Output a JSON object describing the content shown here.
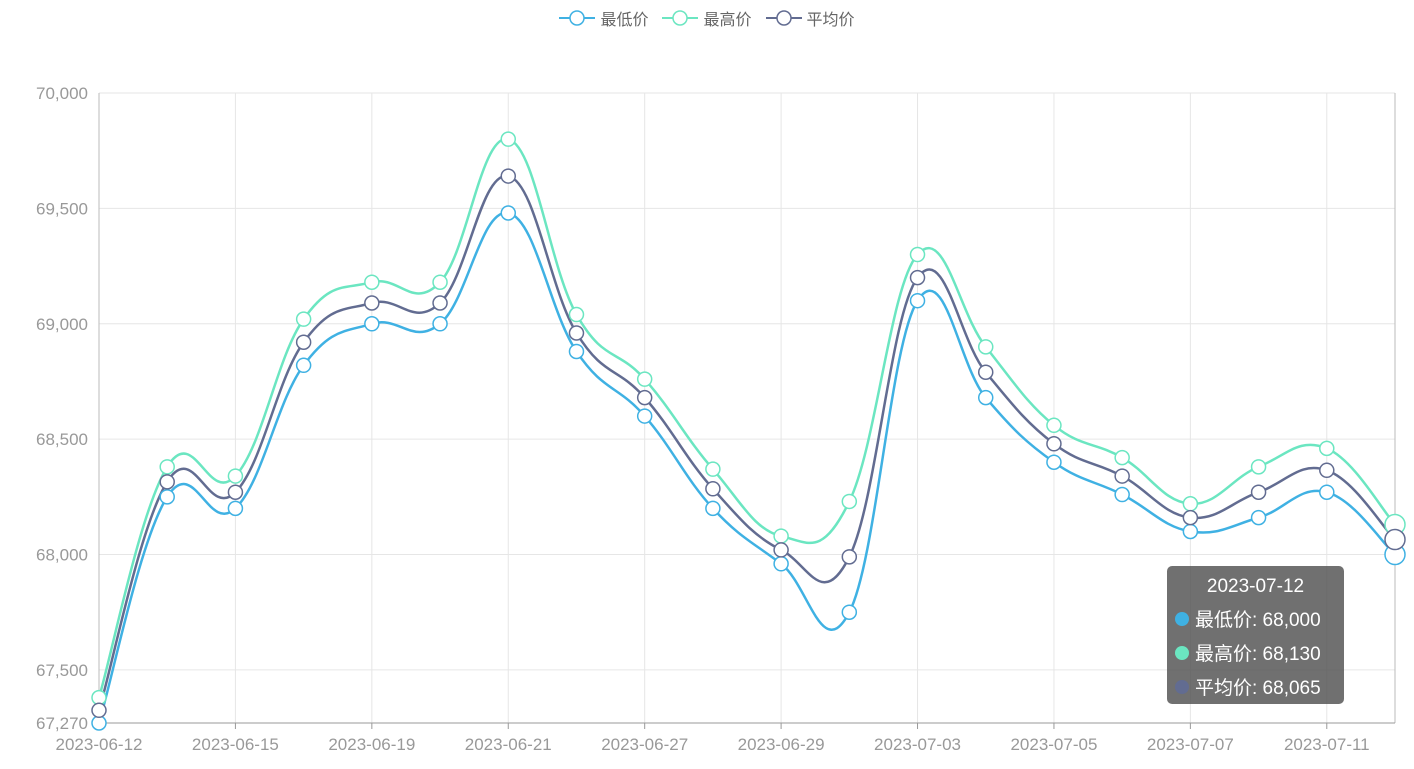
{
  "chart_data": {
    "type": "line",
    "x": [
      "2023-06-12",
      "2023-06-13",
      "2023-06-15",
      "2023-06-16",
      "2023-06-19",
      "2023-06-20",
      "2023-06-21",
      "2023-06-26",
      "2023-06-27",
      "2023-06-28",
      "2023-06-29",
      "2023-06-30",
      "2023-07-03",
      "2023-07-04",
      "2023-07-05",
      "2023-07-06",
      "2023-07-07",
      "2023-07-10",
      "2023-07-11",
      "2023-07-12"
    ],
    "xticks": [
      "2023-06-12",
      "2023-06-15",
      "2023-06-19",
      "2023-06-21",
      "2023-06-27",
      "2023-06-29",
      "2023-07-03",
      "2023-07-05",
      "2023-07-07",
      "2023-07-11"
    ],
    "yticks": [
      "67,270",
      "67,500",
      "68,000",
      "68,500",
      "69,000",
      "69,500",
      "70,000"
    ],
    "ylim": [
      67270,
      70000
    ],
    "grid": true,
    "legend_position": "top-center",
    "series": [
      {
        "name": "最低价",
        "color": "#3fb1e3",
        "values": [
          67270,
          68250,
          68200,
          68820,
          69000,
          69000,
          69480,
          68880,
          68600,
          68200,
          67960,
          67750,
          69100,
          68680,
          68400,
          68260,
          68100,
          68160,
          68270,
          68000
        ]
      },
      {
        "name": "最高价",
        "color": "#6be6c1",
        "values": [
          67380,
          68380,
          68340,
          69020,
          69180,
          69180,
          69800,
          69040,
          68760,
          68370,
          68080,
          68230,
          69300,
          68900,
          68560,
          68420,
          68220,
          68380,
          68460,
          68130
        ]
      },
      {
        "name": "平均价",
        "color": "#626c91",
        "values": [
          67325,
          68315,
          68270,
          68920,
          69090,
          69090,
          69640,
          68960,
          68680,
          68285,
          68020,
          67990,
          69200,
          68790,
          68480,
          68340,
          68160,
          68270,
          68365,
          68065
        ]
      }
    ]
  },
  "tooltip": {
    "title": "2023-07-12",
    "rows": [
      {
        "label": "最低价: 68,000",
        "color": "#3fb1e3"
      },
      {
        "label": "最高价: 68,130",
        "color": "#6be6c1"
      },
      {
        "label": "平均价: 68,065",
        "color": "#626c91"
      }
    ]
  }
}
